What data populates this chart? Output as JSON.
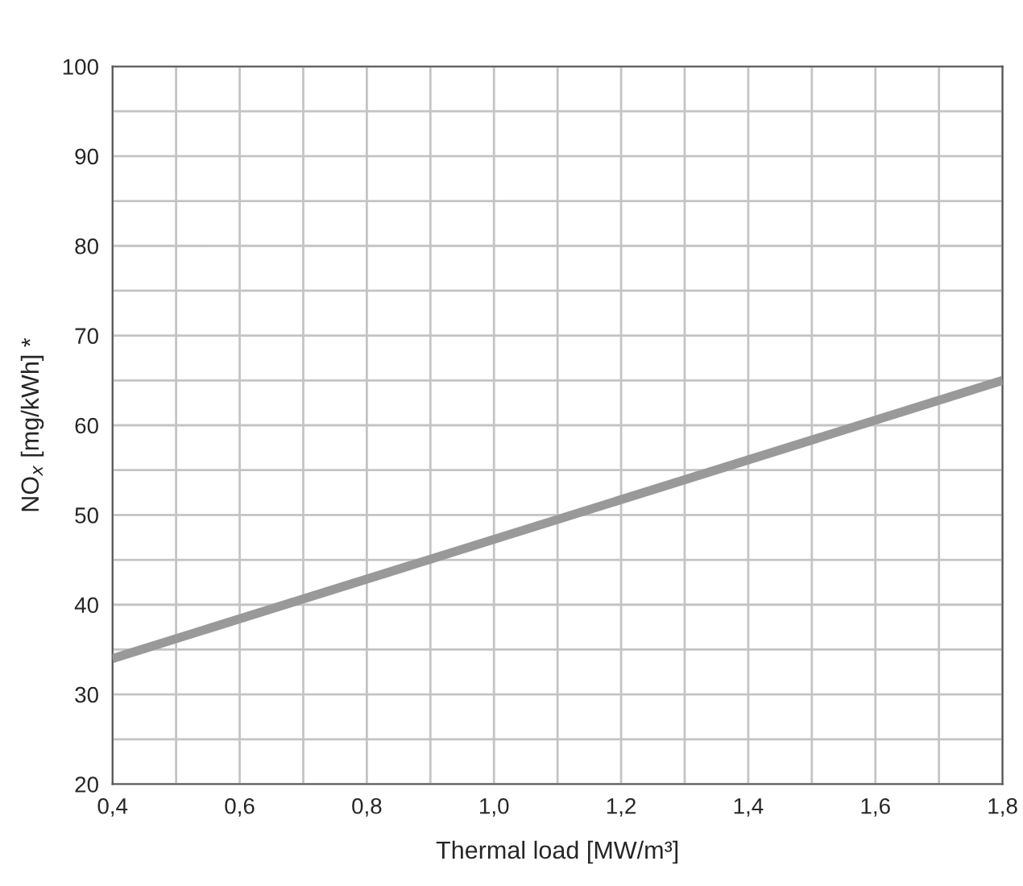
{
  "chart_data": {
    "type": "line",
    "xlabel": "Thermal load [MW/m³]",
    "ylabel": "NO$_{x}$ [mg/kWh] *",
    "x": [
      0.4,
      1.8
    ],
    "series": [
      {
        "color": "#999999",
        "values": [
          34,
          65
        ]
      }
    ],
    "xlim": [
      0.4,
      1.8
    ],
    "ylim": [
      20,
      100
    ],
    "xticks": [
      {
        "value": 0.4,
        "label": "0,4"
      },
      {
        "value": 0.5,
        "label": null
      },
      {
        "value": 0.6,
        "label": "0,6"
      },
      {
        "value": 0.7,
        "label": null
      },
      {
        "value": 0.8,
        "label": "0,8"
      },
      {
        "value": 0.9,
        "label": null
      },
      {
        "value": 1.0,
        "label": "1,0"
      },
      {
        "value": 1.1,
        "label": null
      },
      {
        "value": 1.2,
        "label": "1,2"
      },
      {
        "value": 1.3,
        "label": null
      },
      {
        "value": 1.4,
        "label": "1,4"
      },
      {
        "value": 1.5,
        "label": null
      },
      {
        "value": 1.6,
        "label": "1,6"
      },
      {
        "value": 1.7,
        "label": null
      },
      {
        "value": 1.8,
        "label": "1,8"
      }
    ],
    "yticks": [
      20,
      {
        "value": 25,
        "label": null
      },
      30,
      {
        "value": 35,
        "label": null
      },
      40,
      {
        "value": 45,
        "label": null
      },
      50,
      {
        "value": 55,
        "label": null
      },
      60,
      {
        "value": 65,
        "label": null
      },
      70,
      {
        "value": 75,
        "label": null
      },
      80,
      {
        "value": 85,
        "label": null
      },
      90,
      {
        "value": 95,
        "label": null
      },
      100
    ],
    "grid": true,
    "legend": false,
    "marker": "none",
    "line_style": "solid"
  }
}
